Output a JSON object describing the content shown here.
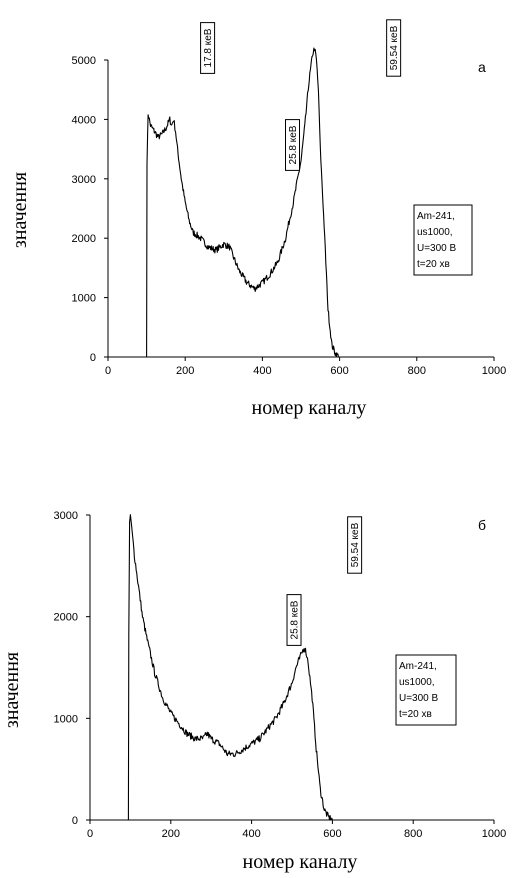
{
  "chart_data": [
    {
      "type": "line",
      "panel_label": "a",
      "xlabel": "номер каналу",
      "ylabel": "значення",
      "xlim": [
        0,
        1000
      ],
      "ylim": [
        0,
        5000
      ],
      "x_ticks": [
        0,
        200,
        400,
        600,
        800,
        1000
      ],
      "y_ticks": [
        0,
        1000,
        2000,
        3000,
        4000,
        5000
      ],
      "grid": false,
      "series": [
        {
          "x": [
            100,
            101,
            104,
            110,
            120,
            130,
            140,
            150,
            160,
            165,
            170,
            175,
            180,
            190,
            200,
            210,
            220,
            240,
            260,
            280,
            300,
            315,
            330,
            340,
            350,
            360,
            370,
            380,
            390,
            400,
            420,
            440,
            460,
            480,
            500,
            510,
            520,
            530,
            535,
            540,
            545,
            550,
            560,
            570,
            580,
            590,
            600
          ],
          "y": [
            0,
            3300,
            4100,
            3900,
            3800,
            3700,
            3750,
            3850,
            4000,
            3900,
            4000,
            3800,
            3500,
            3000,
            2600,
            2300,
            2100,
            2000,
            1850,
            1800,
            1900,
            1850,
            1600,
            1450,
            1350,
            1250,
            1200,
            1150,
            1200,
            1250,
            1400,
            1600,
            2000,
            2600,
            3300,
            3900,
            4600,
            5100,
            5200,
            5000,
            4500,
            3500,
            2200,
            800,
            200,
            50,
            0
          ]
        }
      ],
      "annotations": [
        {
          "text": "17.8 кеВ",
          "x": 258
        },
        {
          "text": "25.8 кеВ",
          "x": 478
        },
        {
          "text": "59.54 кеВ",
          "x": 740
        }
      ],
      "info_box": [
        "Am-241,",
        "us1000,",
        "U=300 В",
        "t=20 хв"
      ]
    },
    {
      "type": "line",
      "panel_label": "б",
      "xlabel": "номер каналу",
      "ylabel": "значення",
      "xlim": [
        0,
        1000
      ],
      "ylim": [
        0,
        3000
      ],
      "x_ticks": [
        0,
        200,
        400,
        600,
        800,
        1000
      ],
      "y_ticks": [
        0,
        1000,
        2000,
        3000
      ],
      "grid": false,
      "series": [
        {
          "x": [
            95,
            96,
            98,
            100,
            105,
            110,
            120,
            130,
            140,
            160,
            180,
            200,
            220,
            240,
            260,
            280,
            290,
            300,
            320,
            340,
            360,
            380,
            400,
            420,
            440,
            460,
            480,
            500,
            510,
            520,
            525,
            530,
            535,
            540,
            550,
            560,
            570,
            580,
            590,
            600
          ],
          "y": [
            0,
            1800,
            2900,
            3000,
            2800,
            2600,
            2300,
            2000,
            1800,
            1450,
            1200,
            1050,
            950,
            850,
            800,
            800,
            850,
            800,
            750,
            650,
            650,
            700,
            750,
            800,
            900,
            1000,
            1150,
            1350,
            1500,
            1600,
            1650,
            1700,
            1650,
            1550,
            1200,
            700,
            300,
            100,
            30,
            0
          ]
        }
      ],
      "annotations": [
        {
          "text": "25.8 кеВ",
          "x": 505
        },
        {
          "text": "59.54 кеВ",
          "x": 655
        }
      ],
      "info_box": [
        "Am-241,",
        "us1000,",
        "U=300 В",
        "t=20 хв"
      ]
    }
  ]
}
